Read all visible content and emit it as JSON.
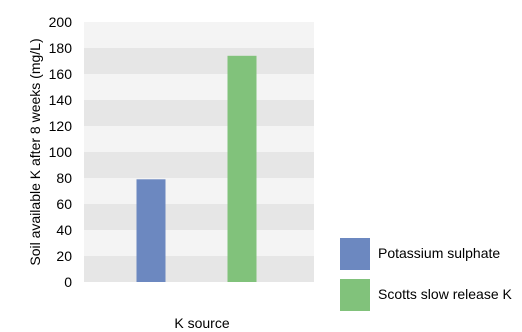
{
  "chart_data": {
    "type": "bar",
    "categories": [
      "Potassium sulphate",
      "Scotts slow release K"
    ],
    "series": [
      {
        "name": "Potassium sulphate",
        "values": [
          79,
          null
        ],
        "color": "#6c88c0"
      },
      {
        "name": "Scotts slow release K",
        "values": [
          null,
          174
        ],
        "color": "#81c27b"
      }
    ],
    "values": [
      79,
      174
    ],
    "xlabel": "K source",
    "ylabel": "Soil available K after 8 weeks (mg/L)",
    "ylim": [
      0,
      200
    ],
    "yticks": [
      0,
      20,
      40,
      60,
      80,
      100,
      120,
      140,
      160,
      180,
      200
    ],
    "grid": "alternating horizontal bands",
    "legend": "bottom-right"
  },
  "colors": {
    "band_dark": "#e6e6e6",
    "band_light": "#f4f4f4"
  }
}
